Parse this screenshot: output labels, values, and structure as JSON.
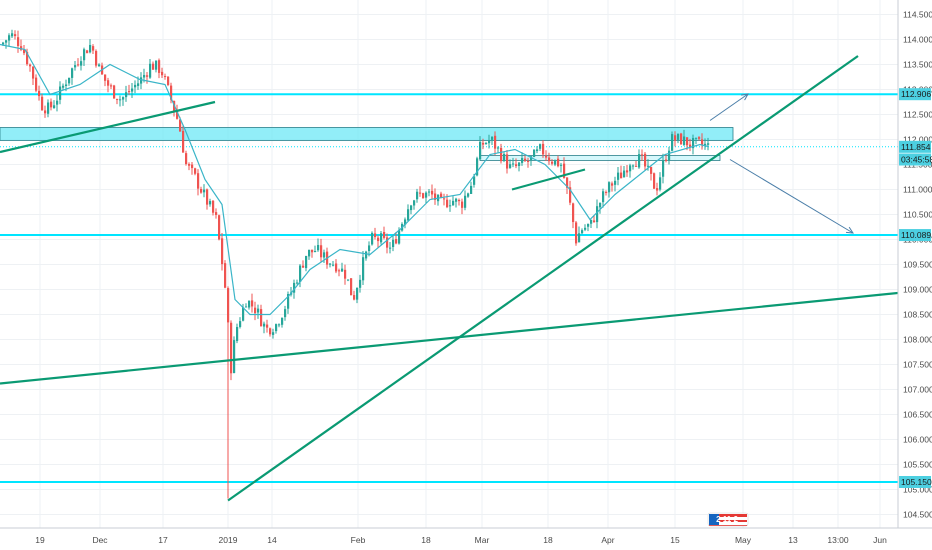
{
  "chart_data": {
    "type": "candlestick",
    "y_range": [
      104.3,
      114.7
    ],
    "y_ticks": [
      "114.500",
      "114.000",
      "113.500",
      "113.000",
      "112.500",
      "112.000",
      "111.500",
      "111.000",
      "110.500",
      "110.000",
      "109.500",
      "109.000",
      "108.500",
      "108.000",
      "107.500",
      "107.000",
      "106.500",
      "106.000",
      "105.500",
      "105.000",
      "104.500"
    ],
    "x_ticks": [
      "19",
      "Dec",
      "17",
      "2019",
      "14",
      "Feb",
      "18",
      "Mar",
      "18",
      "Apr",
      "15",
      "May",
      "13",
      "13:00",
      "Jun"
    ],
    "price_labels": [
      {
        "text": "112.906",
        "price": 112.906,
        "color": "#4dd0e1"
      },
      {
        "text": "111.854",
        "price": 111.854,
        "color": "#4dd0e1"
      },
      {
        "text": "03:45:58",
        "price": 111.6,
        "color": "#4dd0e1"
      },
      {
        "text": "110.089",
        "price": 110.089,
        "color": "#4dd0e1"
      },
      {
        "text": "105.150",
        "price": 105.15,
        "color": "#4dd0e1"
      }
    ],
    "horizontal_levels": [
      112.906,
      110.089,
      105.15
    ],
    "resistance_zone": [
      112.0,
      112.22
    ],
    "support_zone": [
      111.58,
      111.68
    ],
    "last_price": 111.854,
    "candle_path": [
      [
        0,
        113.9
      ],
      [
        10,
        114.1
      ],
      [
        20,
        113.9
      ],
      [
        30,
        113.4
      ],
      [
        40,
        112.7
      ],
      [
        48,
        112.6
      ],
      [
        58,
        112.9
      ],
      [
        68,
        113.3
      ],
      [
        80,
        113.7
      ],
      [
        90,
        113.9
      ],
      [
        100,
        113.3
      ],
      [
        110,
        113.0
      ],
      [
        120,
        112.8
      ],
      [
        130,
        113.0
      ],
      [
        140,
        113.2
      ],
      [
        150,
        113.5
      ],
      [
        160,
        113.4
      ],
      [
        170,
        112.8
      ],
      [
        178,
        112.3
      ],
      [
        185,
        111.5
      ],
      [
        195,
        111.2
      ],
      [
        205,
        110.8
      ],
      [
        215,
        110.4
      ],
      [
        222,
        109.4
      ],
      [
        226,
        108.7
      ],
      [
        229,
        107.3
      ],
      [
        235,
        108.2
      ],
      [
        245,
        108.8
      ],
      [
        255,
        108.6
      ],
      [
        265,
        108.2
      ],
      [
        275,
        108.3
      ],
      [
        285,
        108.7
      ],
      [
        295,
        109.2
      ],
      [
        305,
        109.7
      ],
      [
        315,
        109.8
      ],
      [
        325,
        109.6
      ],
      [
        335,
        109.5
      ],
      [
        345,
        109.3
      ],
      [
        352,
        108.8
      ],
      [
        360,
        109.4
      ],
      [
        370,
        110.0
      ],
      [
        380,
        110.0
      ],
      [
        390,
        109.8
      ],
      [
        400,
        110.3
      ],
      [
        410,
        110.8
      ],
      [
        420,
        110.9
      ],
      [
        430,
        110.9
      ],
      [
        440,
        110.7
      ],
      [
        450,
        110.8
      ],
      [
        460,
        110.7
      ],
      [
        470,
        111.1
      ],
      [
        480,
        111.9
      ],
      [
        490,
        112.0
      ],
      [
        500,
        111.7
      ],
      [
        510,
        111.4
      ],
      [
        520,
        111.5
      ],
      [
        530,
        111.6
      ],
      [
        540,
        111.8
      ],
      [
        550,
        111.6
      ],
      [
        560,
        111.5
      ],
      [
        568,
        110.8
      ],
      [
        575,
        110.0
      ],
      [
        580,
        110.2
      ],
      [
        590,
        110.3
      ],
      [
        600,
        110.8
      ],
      [
        610,
        111.1
      ],
      [
        620,
        111.3
      ],
      [
        630,
        111.6
      ],
      [
        640,
        111.6
      ],
      [
        648,
        111.3
      ],
      [
        655,
        111.0
      ],
      [
        662,
        111.5
      ],
      [
        670,
        112.0
      ],
      [
        680,
        112.0
      ],
      [
        690,
        111.9
      ],
      [
        700,
        111.9
      ],
      [
        708,
        111.854
      ]
    ],
    "ma_path": [
      [
        0,
        113.9
      ],
      [
        25,
        113.8
      ],
      [
        50,
        112.9
      ],
      [
        80,
        113.1
      ],
      [
        110,
        113.5
      ],
      [
        140,
        113.2
      ],
      [
        165,
        113.1
      ],
      [
        185,
        112.2
      ],
      [
        205,
        111.2
      ],
      [
        222,
        110.7
      ],
      [
        235,
        108.8
      ],
      [
        250,
        108.5
      ],
      [
        270,
        108.5
      ],
      [
        290,
        108.9
      ],
      [
        310,
        109.4
      ],
      [
        340,
        109.8
      ],
      [
        370,
        109.7
      ],
      [
        400,
        110.2
      ],
      [
        430,
        110.8
      ],
      [
        460,
        110.9
      ],
      [
        490,
        111.7
      ],
      [
        515,
        111.8
      ],
      [
        545,
        111.5
      ],
      [
        570,
        111.0
      ],
      [
        590,
        110.4
      ],
      [
        615,
        110.9
      ],
      [
        640,
        111.3
      ],
      [
        665,
        111.7
      ],
      [
        700,
        111.9
      ],
      [
        708,
        111.86
      ]
    ],
    "trend_lines": [
      {
        "from": [
          0,
          111.75
        ],
        "to": [
          215,
          112.75
        ]
      },
      {
        "from": [
          228,
          104.78
        ],
        "to": [
          858,
          113.67
        ]
      },
      {
        "from": [
          0,
          107.12
        ],
        "to": [
          932,
          109.0
        ]
      },
      {
        "from": [
          512,
          111.0
        ],
        "to": [
          585,
          111.4
        ]
      }
    ],
    "projection_arrows": [
      {
        "from": [
          710,
          112.38
        ],
        "to": [
          748,
          112.91
        ]
      },
      {
        "from": [
          730,
          111.6
        ],
        "to": [
          853,
          110.13
        ]
      }
    ],
    "colors": {
      "up": "#26a69a",
      "down": "#ef5350",
      "level": "#00e5ff",
      "zone_fill": "#6ee8f5",
      "trend": "#0a9a73",
      "ma": "#3ab5c8",
      "arrow": "#4a7ea8",
      "grid": "#eef1f4"
    }
  },
  "watermark": {
    "icon": "flag-logo-icon",
    "text": "2 11 2"
  }
}
